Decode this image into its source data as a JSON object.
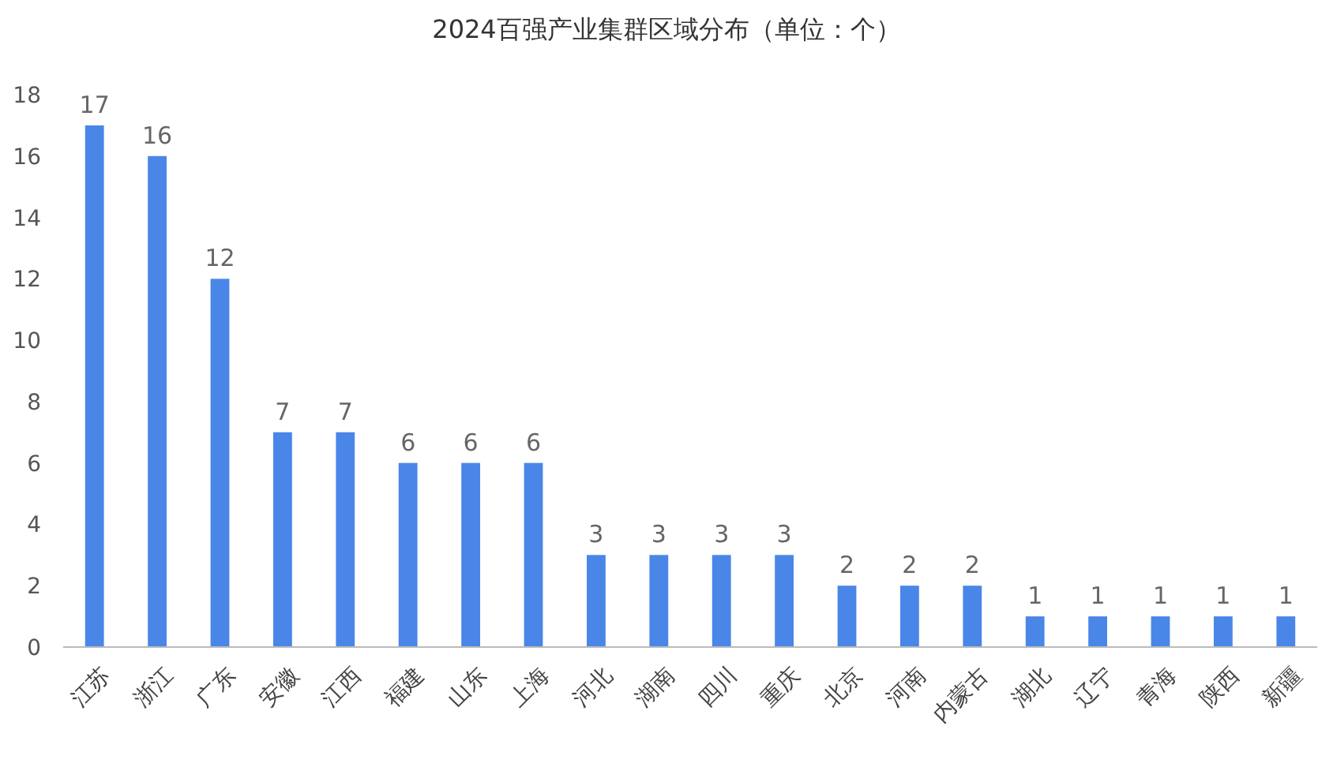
{
  "chart_data": {
    "type": "bar",
    "title": "2024百强产业集群区域分布（单位：个）",
    "categories": [
      "江苏",
      "浙江",
      "广东",
      "安徽",
      "江西",
      "福建",
      "山东",
      "上海",
      "河北",
      "湖南",
      "四川",
      "重庆",
      "北京",
      "河南",
      "内蒙古",
      "湖北",
      "辽宁",
      "青海",
      "陕西",
      "新疆"
    ],
    "values": [
      17,
      16,
      12,
      7,
      7,
      6,
      6,
      6,
      3,
      3,
      3,
      3,
      2,
      2,
      2,
      1,
      1,
      1,
      1,
      1
    ],
    "color": "#4a86e8",
    "ylim": [
      0,
      18
    ],
    "yticks": [
      0,
      2,
      4,
      6,
      8,
      10,
      12,
      14,
      16,
      18
    ],
    "data_labels": true
  }
}
